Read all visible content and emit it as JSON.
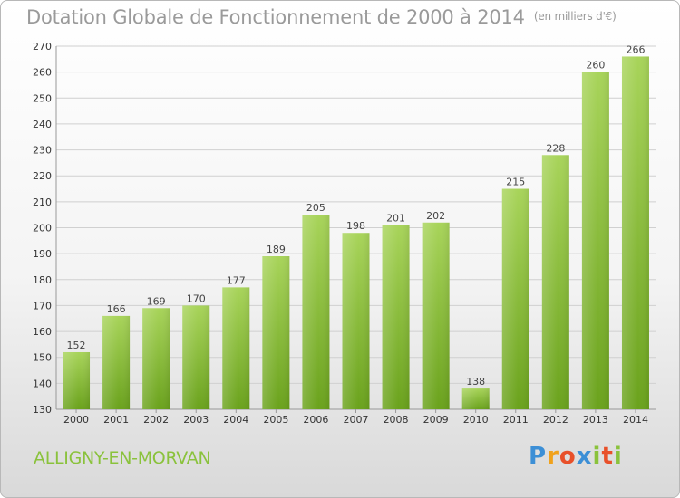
{
  "header": {
    "title": "Dotation Globale de Fonctionnement de 2000 à 2014",
    "unit": "(en milliers d'€)"
  },
  "footer": {
    "commune": "ALLIGNY-EN-MORVAN",
    "logo_text": "Proxiti"
  },
  "colors": {
    "bar_light": "#a8d45a",
    "bar_dark": "#6aa21c",
    "title": "#9a9a9a",
    "commune": "#8ac23c"
  },
  "chart_data": {
    "type": "bar",
    "title": "Dotation Globale de Fonctionnement de 2000 à 2014",
    "xlabel": "",
    "ylabel": "",
    "ylim": [
      130,
      270
    ],
    "yticks": [
      130,
      140,
      150,
      160,
      170,
      180,
      190,
      200,
      210,
      220,
      230,
      240,
      250,
      260,
      270
    ],
    "grid": true,
    "categories": [
      "2000",
      "2001",
      "2002",
      "2003",
      "2004",
      "2005",
      "2006",
      "2007",
      "2008",
      "2009",
      "2010",
      "2011",
      "2012",
      "2013",
      "2014"
    ],
    "values": [
      152,
      166,
      169,
      170,
      177,
      189,
      205,
      198,
      201,
      202,
      138,
      215,
      228,
      260,
      266
    ]
  }
}
